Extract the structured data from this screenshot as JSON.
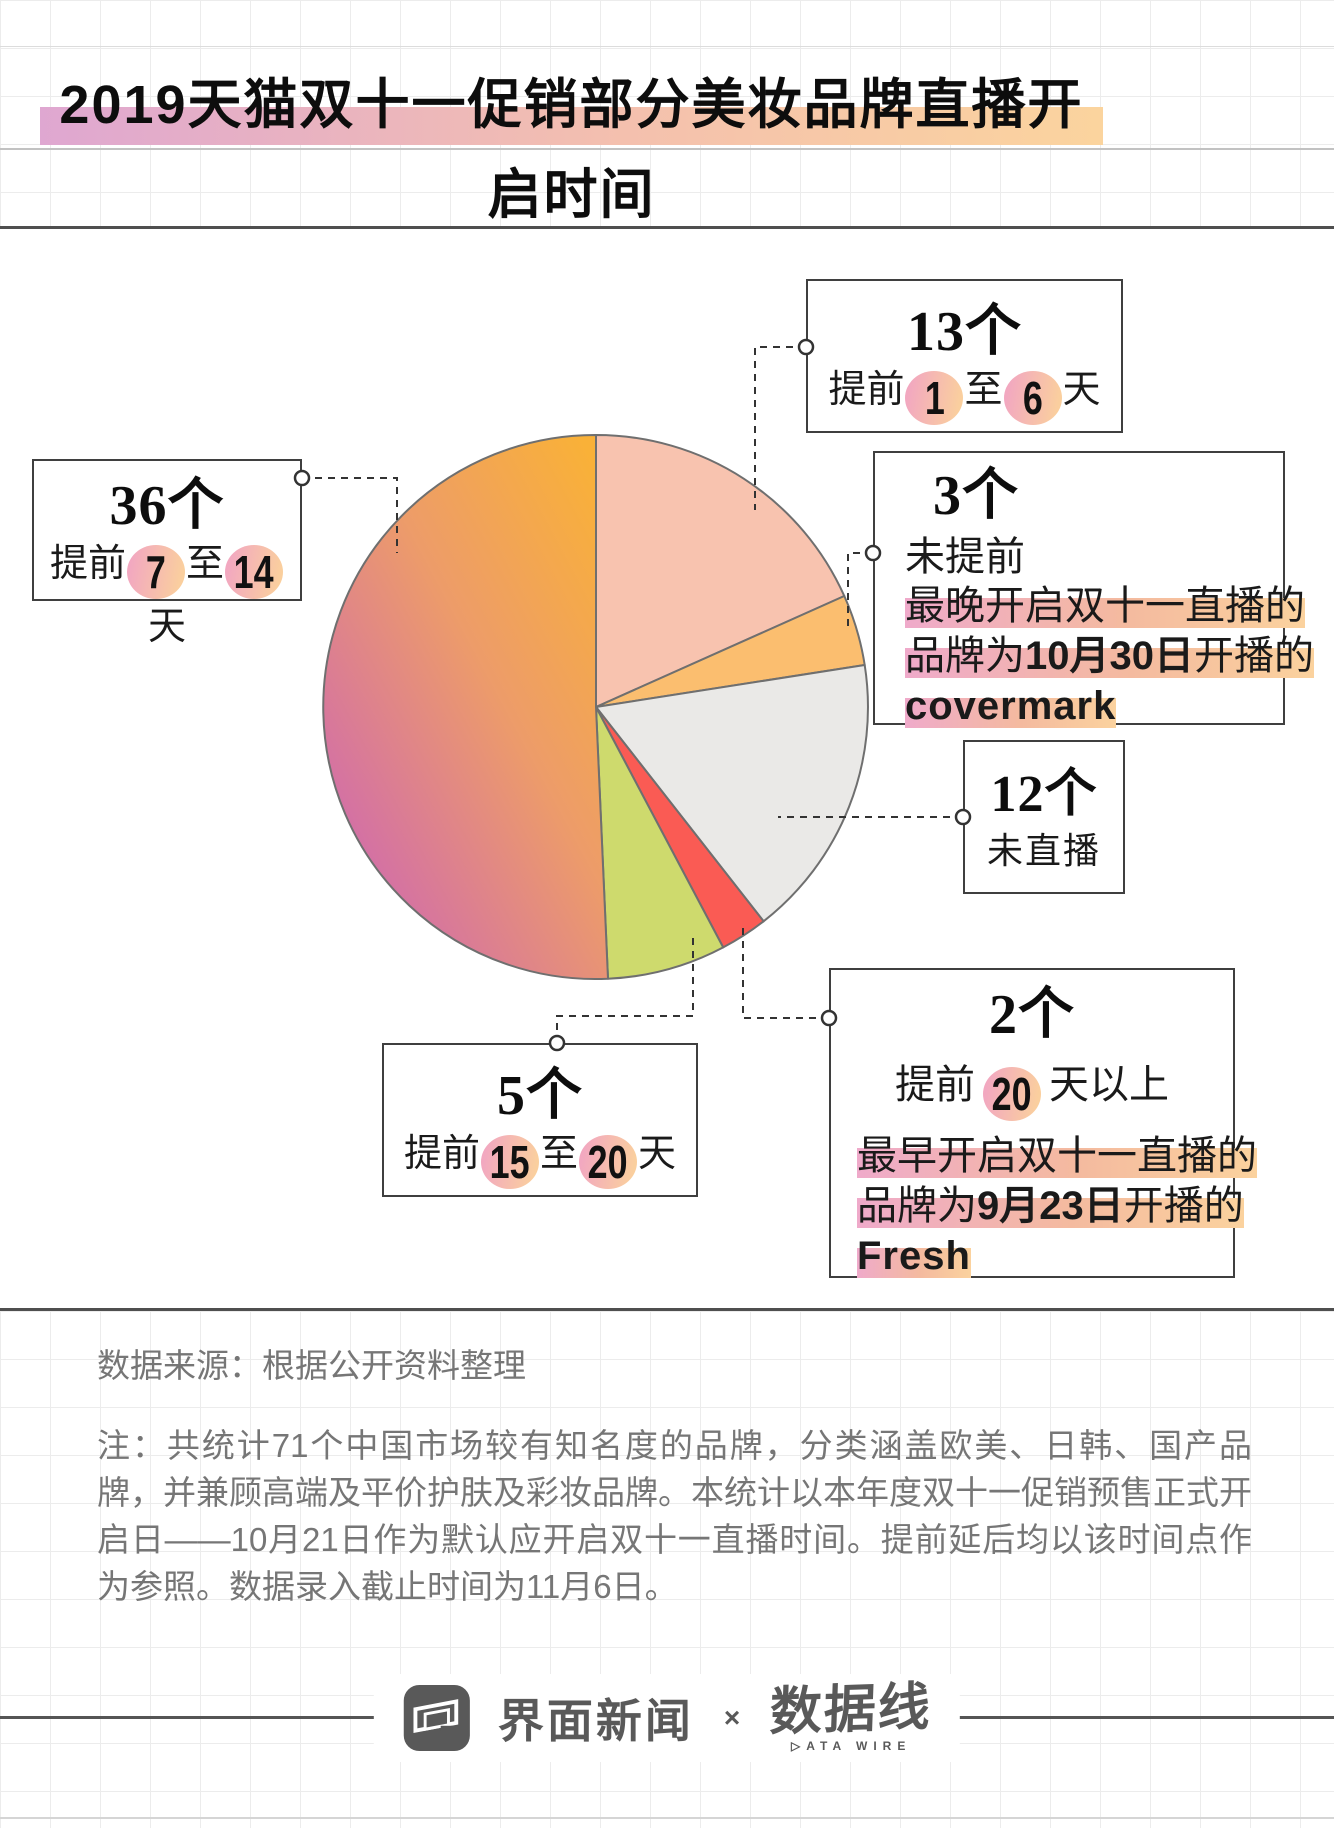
{
  "title": "2019天猫双十一促销部分美妆品牌直播开启时间",
  "chart_data": {
    "type": "pie",
    "title": "2019天猫双十一促销部分美妆品牌直播开启时间",
    "total_brands": 71,
    "direction": "clockwise",
    "start_angle_deg": 0,
    "legend": "none",
    "slices": [
      {
        "label": "提前1至6天",
        "count": 13,
        "count_label": "13个",
        "color": "#F8C3AF"
      },
      {
        "label": "未提前",
        "count": 3,
        "count_label": "3个",
        "color": "#FBBE6F",
        "note": "最晚开启双十一直播的品牌为10月30日开播的covermark"
      },
      {
        "label": "未直播",
        "count": 12,
        "count_label": "12个",
        "color": "#EAE9E7"
      },
      {
        "label": "提前20天以上",
        "count": 2,
        "count_label": "2个",
        "color": "#FA5B54",
        "note": "最早开启双十一直播的品牌为9月23日开播的Fresh"
      },
      {
        "label": "提前15至20天",
        "count": 5,
        "count_label": "5个",
        "color": "#CEDA6D"
      },
      {
        "label": "提前7至14天",
        "count": 36,
        "count_label": "36个",
        "color_gradient": [
          "#F9B138",
          "#ED9C69",
          "#D26EA8"
        ]
      }
    ]
  },
  "callouts": {
    "c13": {
      "count_label": "13个",
      "seg": [
        "提前",
        "1",
        "至",
        "6",
        "天"
      ]
    },
    "c36": {
      "count_label": "36个",
      "seg": [
        "提前",
        "7",
        "至",
        "14",
        "天"
      ]
    },
    "c5": {
      "count_label": "5个",
      "seg": [
        "提前",
        "15",
        "至",
        "20",
        "天"
      ]
    },
    "c12": {
      "count_label": "12个",
      "label": "未直播"
    },
    "c3": {
      "count_label": "3个",
      "label": "未提前",
      "note_line1": "最晚开启双十一直播的",
      "note_line2_pre": "品牌为",
      "note_line2_bold": "10月30日",
      "note_line2_post": "开播的",
      "note_line3": "covermark"
    },
    "c2": {
      "count_label": "2个",
      "pre": "提前",
      "num": "20",
      "post": "天以上",
      "note_line1": "最早开启双十一直播的",
      "note_line2_pre": "品牌为",
      "note_line2_bold": "9月23日",
      "note_line2_post": "开播的",
      "note_line3": "Fresh"
    }
  },
  "footer": {
    "source": "数据来源：根据公开资料整理",
    "note": "注：共统计71个中国市场较有知名度的品牌，分类涵盖欧美、日韩、国产品牌，并兼顾高端及平价护肤及彩妆品牌。本统计以本年度双十一促销预售正式开启日——10月21日作为默认应开启双十一直播时间。提前延后均以该时间点作为参照。数据录入截止时间为11月6日。"
  },
  "branding": {
    "jiemian_label": "界面新闻",
    "separator": "×",
    "datawire_label": "数据线",
    "datawire_sub": "▷ATA WIRE"
  },
  "colors": {
    "title_bar_gradient": [
      "#DFA7D1",
      "#F4C0AE",
      "#FBD49E"
    ],
    "highlight_gradient": [
      "#EFAACA",
      "#FBD29E"
    ],
    "number_circle_gradient": [
      "#F2A8C0",
      "#FACF9E"
    ],
    "pie_stroke": "#6F6F6F",
    "box_border": "#3F3F3F",
    "separator_line": "#4F4F4F",
    "footer_text": "#767676",
    "logo_color": "#595959"
  }
}
